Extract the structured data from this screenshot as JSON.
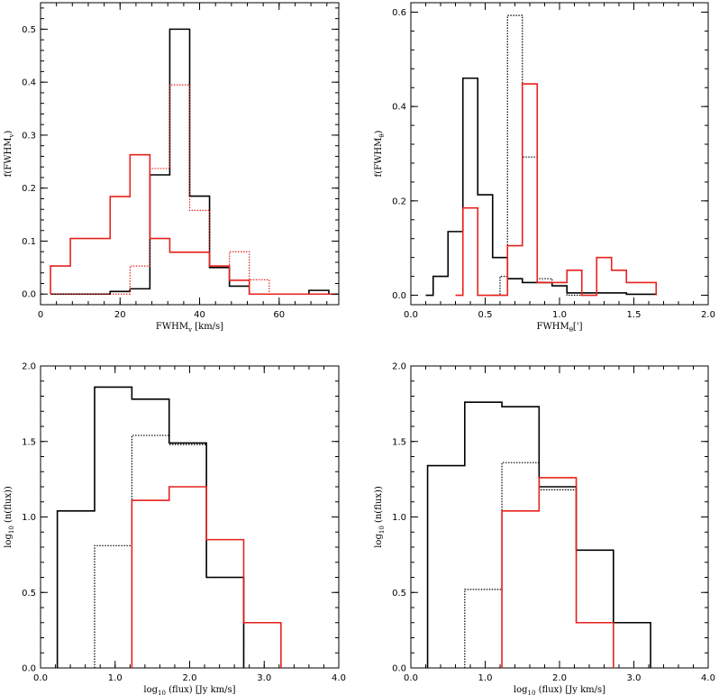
{
  "colors": {
    "black": "#000000",
    "red": "#e8211d"
  },
  "chart_data": [
    {
      "type": "histogram",
      "xlabel": "FWHM",
      "xlabel_sub": "v",
      "xlabel_unit": " [km/s]",
      "ylabel": "f(FWHM",
      "ylabel_sub": "v",
      "ylabel_end": ")",
      "xlim": [
        0,
        75
      ],
      "ylim": [
        -0.02,
        0.55
      ],
      "xticks": [
        0,
        20,
        40,
        60
      ],
      "xtick_labels": [
        "0",
        "20",
        "40",
        "60"
      ],
      "yticks": [
        0.0,
        0.1,
        0.2,
        0.3,
        0.4,
        0.5
      ],
      "ytick_labels": [
        "0.0",
        "0.1",
        "0.2",
        "0.3",
        "0.4",
        "0.5"
      ],
      "series": [
        {
          "color": "black",
          "style": "solid",
          "steps": [
            [
              2.5,
              0
            ],
            [
              7.5,
              0
            ],
            [
              12.5,
              0
            ],
            [
              17.5,
              0.005
            ],
            [
              22.5,
              0.01
            ],
            [
              27.5,
              0.225
            ],
            [
              32.5,
              0.5
            ],
            [
              37.5,
              0.185
            ],
            [
              42.5,
              0.05
            ],
            [
              47.5,
              0.015
            ],
            [
              52.5,
              0
            ],
            [
              57.5,
              0
            ],
            [
              62.5,
              0
            ],
            [
              67.5,
              0.007
            ],
            [
              72.5,
              0
            ],
            [
              77.5,
              0
            ]
          ]
        },
        {
          "color": "red",
          "style": "dotted",
          "steps": [
            [
              2.5,
              0
            ],
            [
              7.5,
              0
            ],
            [
              12.5,
              0
            ],
            [
              17.5,
              0
            ],
            [
              22.5,
              0.053
            ],
            [
              27.5,
              0.237
            ],
            [
              32.5,
              0.395
            ],
            [
              37.5,
              0.158
            ],
            [
              42.5,
              0.053
            ],
            [
              47.5,
              0.08
            ],
            [
              52.5,
              0.027
            ],
            [
              57.5,
              0
            ],
            [
              62.5,
              0
            ],
            [
              67.5,
              0
            ],
            [
              72.5,
              0
            ],
            [
              77.5,
              0
            ]
          ]
        },
        {
          "color": "red",
          "style": "solid",
          "steps": [
            [
              2.5,
              0.053
            ],
            [
              7.5,
              0.105
            ],
            [
              12.5,
              0.105
            ],
            [
              17.5,
              0.184
            ],
            [
              22.5,
              0.263
            ],
            [
              27.5,
              0.105
            ],
            [
              32.5,
              0.079
            ],
            [
              37.5,
              0.079
            ],
            [
              42.5,
              0.053
            ],
            [
              47.5,
              0.026
            ],
            [
              52.5,
              0
            ],
            [
              57.5,
              0
            ],
            [
              62.5,
              0
            ],
            [
              67.5,
              0
            ],
            [
              72.5,
              0
            ],
            [
              77.5,
              0
            ]
          ]
        }
      ]
    },
    {
      "type": "histogram",
      "xlabel": "FWHM",
      "xlabel_sub": "θ",
      "xlabel_unit": "[']",
      "ylabel": "f(FWHM",
      "ylabel_sub": "θ",
      "ylabel_end": ")",
      "xlim": [
        0,
        2.0
      ],
      "ylim": [
        -0.02,
        0.62
      ],
      "xticks": [
        0.0,
        0.5,
        1.0,
        1.5,
        2.0
      ],
      "xtick_labels": [
        "0.0",
        "0.5",
        "1.0",
        "1.5",
        "2.0"
      ],
      "yticks": [
        0.0,
        0.2,
        0.4,
        0.6
      ],
      "ytick_labels": [
        "0.0",
        "0.2",
        "0.4",
        "0.6"
      ],
      "series": [
        {
          "color": "black",
          "style": "solid",
          "steps": [
            [
              0.1,
              0
            ],
            [
              0.15,
              0.04
            ],
            [
              0.25,
              0.135
            ],
            [
              0.35,
              0.46
            ],
            [
              0.45,
              0.213
            ],
            [
              0.55,
              0.08
            ],
            [
              0.65,
              0.035
            ],
            [
              0.75,
              0.027
            ],
            [
              0.85,
              0.027
            ],
            [
              0.95,
              0.02
            ],
            [
              1.05,
              0.005
            ],
            [
              1.15,
              0.005
            ],
            [
              1.25,
              0.005
            ],
            [
              1.35,
              0.005
            ],
            [
              1.45,
              0.002
            ],
            [
              1.55,
              0.002
            ],
            [
              1.65,
              0
            ]
          ]
        },
        {
          "color": "black",
          "style": "dotted",
          "steps": [
            [
              0.55,
              0
            ],
            [
              0.6,
              0.04
            ],
            [
              0.65,
              0.593
            ],
            [
              0.75,
              0.293
            ],
            [
              0.85,
              0.035
            ],
            [
              0.95,
              0.02
            ],
            [
              1.05,
              0
            ],
            [
              1.15,
              0
            ]
          ]
        },
        {
          "color": "red",
          "style": "solid",
          "steps": [
            [
              0.3,
              0
            ],
            [
              0.35,
              0.185
            ],
            [
              0.45,
              0
            ],
            [
              0.55,
              0
            ],
            [
              0.65,
              0.105
            ],
            [
              0.75,
              0.448
            ],
            [
              0.85,
              0.027
            ],
            [
              0.95,
              0.027
            ],
            [
              1.05,
              0.053
            ],
            [
              1.15,
              0
            ],
            [
              1.25,
              0.08
            ],
            [
              1.35,
              0.053
            ],
            [
              1.45,
              0.027
            ],
            [
              1.55,
              0.027
            ],
            [
              1.65,
              0
            ]
          ]
        }
      ]
    },
    {
      "type": "histogram",
      "xlabel": "log",
      "xlabel_sub": "10",
      "xlabel_unit": " (flux) [Jy km/s]",
      "ylabel": "log",
      "ylabel_sub": "10",
      "ylabel_end": " (n(flux))",
      "xlim": [
        0,
        4.0
      ],
      "ylim": [
        0,
        2.0
      ],
      "xticks": [
        0.0,
        1.0,
        2.0,
        3.0,
        4.0
      ],
      "xtick_labels": [
        "0.0",
        "1.0",
        "2.0",
        "3.0",
        "4.0"
      ],
      "yticks": [
        0.0,
        0.5,
        1.0,
        1.5,
        2.0
      ],
      "ytick_labels": [
        "0.0",
        "0.5",
        "1.0",
        "1.5",
        "2.0"
      ],
      "series": [
        {
          "color": "black",
          "style": "solid",
          "steps": [
            [
              0.225,
              1.04
            ],
            [
              0.725,
              1.86
            ],
            [
              1.225,
              1.78
            ],
            [
              1.725,
              1.49
            ],
            [
              2.225,
              0.6
            ],
            [
              2.725,
              0
            ]
          ]
        },
        {
          "color": "black",
          "style": "dotted",
          "steps": [
            [
              0.725,
              0.81
            ],
            [
              1.225,
              1.54
            ],
            [
              1.725,
              1.48
            ],
            [
              2.225,
              0.6
            ],
            [
              2.725,
              0
            ]
          ]
        },
        {
          "color": "red",
          "style": "solid",
          "steps": [
            [
              1.225,
              1.11
            ],
            [
              1.725,
              1.2
            ],
            [
              2.225,
              0.85
            ],
            [
              2.725,
              0.3
            ],
            [
              3.225,
              0
            ]
          ]
        }
      ]
    },
    {
      "type": "histogram",
      "xlabel": "log",
      "xlabel_sub": "10",
      "xlabel_unit": " (flux) [Jy km/s]",
      "ylabel": "log",
      "ylabel_sub": "10",
      "ylabel_end": " (n(flux))",
      "xlim": [
        0,
        4.0
      ],
      "ylim": [
        0,
        2.0
      ],
      "xticks": [
        0.0,
        1.0,
        2.0,
        3.0,
        4.0
      ],
      "xtick_labels": [
        "0.0",
        "1.0",
        "2.0",
        "3.0",
        "4.0"
      ],
      "yticks": [
        0.0,
        0.5,
        1.0,
        1.5,
        2.0
      ],
      "ytick_labels": [
        "0.0",
        "0.5",
        "1.0",
        "1.5",
        "2.0"
      ],
      "series": [
        {
          "color": "black",
          "style": "solid",
          "steps": [
            [
              0.225,
              1.34
            ],
            [
              0.725,
              1.76
            ],
            [
              1.225,
              1.73
            ],
            [
              1.725,
              1.2
            ],
            [
              2.225,
              0.78
            ],
            [
              2.725,
              0.3
            ],
            [
              3.225,
              0
            ]
          ]
        },
        {
          "color": "black",
          "style": "dotted",
          "steps": [
            [
              0.725,
              0.52
            ],
            [
              1.225,
              1.36
            ],
            [
              1.725,
              1.18
            ],
            [
              2.225,
              0.3
            ],
            [
              2.725,
              0
            ]
          ]
        },
        {
          "color": "red",
          "style": "solid",
          "steps": [
            [
              1.225,
              1.04
            ],
            [
              1.725,
              1.26
            ],
            [
              2.225,
              0.3
            ],
            [
              2.725,
              0
            ]
          ]
        }
      ]
    }
  ]
}
